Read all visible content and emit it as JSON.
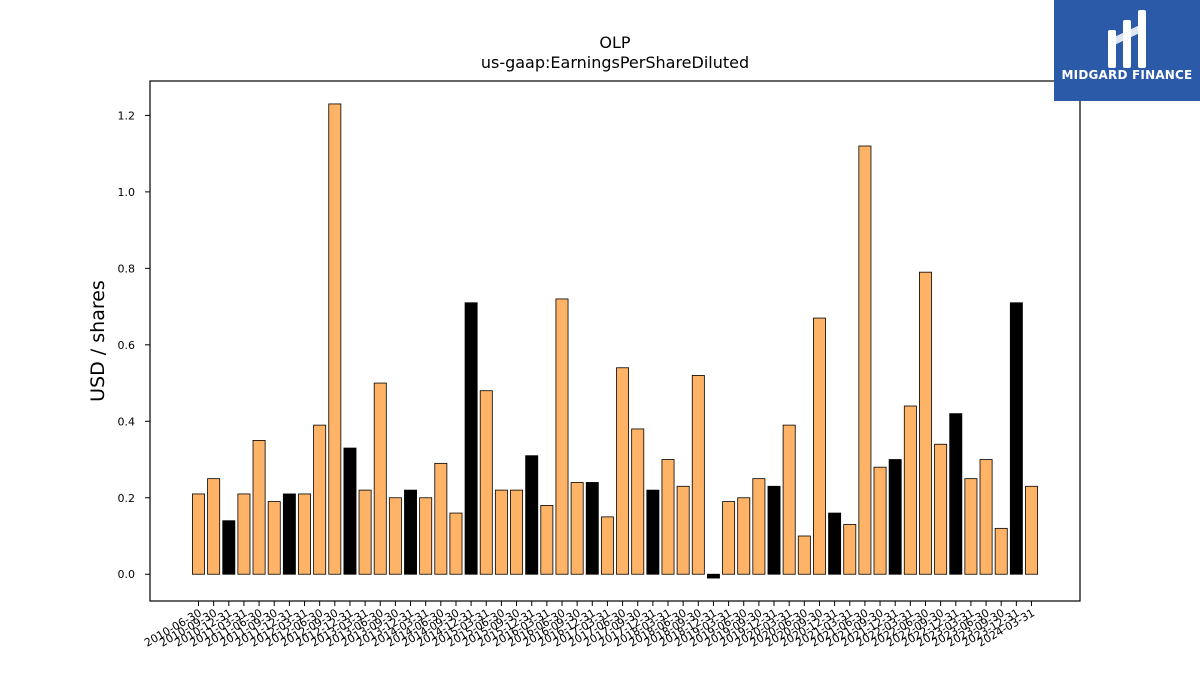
{
  "chart_data": {
    "type": "bar",
    "title": "OLP",
    "subtitle": "us-gaap:EarningsPerShareDiluted",
    "xlabel": "",
    "ylabel": "USD / shares",
    "ylim": [
      -0.07,
      1.29
    ],
    "yticks": [
      "0.0",
      "0.2",
      "0.4",
      "0.6",
      "0.8",
      "1.0",
      "1.2"
    ],
    "grid": false,
    "colors": {
      "default": "#ffb366",
      "highlight": "#000000",
      "edge": "#000000"
    },
    "categories": [
      "2010-06-30",
      "2010-09-30",
      "2010-12-31",
      "2011-03-31",
      "2011-06-30",
      "2011-09-30",
      "2011-12-31",
      "2012-03-31",
      "2012-06-30",
      "2012-09-30",
      "2012-12-31",
      "2013-03-31",
      "2013-06-30",
      "2013-09-30",
      "2013-12-31",
      "2014-03-31",
      "2014-06-30",
      "2014-09-30",
      "2014-12-31",
      "2015-03-31",
      "2015-06-30",
      "2015-09-30",
      "2015-12-31",
      "2016-03-31",
      "2016-06-30",
      "2016-09-30",
      "2016-12-31",
      "2017-03-31",
      "2017-06-30",
      "2017-09-30",
      "2017-12-31",
      "2018-03-31",
      "2018-06-30",
      "2018-09-30",
      "2018-12-31",
      "2019-03-31",
      "2019-06-30",
      "2019-09-30",
      "2019-12-31",
      "2020-03-31",
      "2020-06-30",
      "2020-09-30",
      "2020-12-31",
      "2021-03-31",
      "2021-06-30",
      "2021-09-30",
      "2021-12-31",
      "2022-03-31",
      "2022-06-30",
      "2022-09-30",
      "2022-12-31",
      "2023-03-31",
      "2023-06-30",
      "2023-09-30",
      "2023-12-31",
      "2024-03-31"
    ],
    "values": [
      0.21,
      0.25,
      0.14,
      0.21,
      0.35,
      0.19,
      0.21,
      0.21,
      0.39,
      1.23,
      0.33,
      0.22,
      0.5,
      0.2,
      0.22,
      0.2,
      0.29,
      0.16,
      0.71,
      0.48,
      0.22,
      0.22,
      0.31,
      0.18,
      0.72,
      0.24,
      0.24,
      0.15,
      0.54,
      0.38,
      0.22,
      0.3,
      0.23,
      0.52,
      -0.01,
      0.19,
      0.2,
      0.25,
      0.23,
      0.39,
      0.1,
      0.67,
      0.16,
      0.13,
      1.12,
      0.28,
      0.3,
      0.44,
      0.79,
      0.34,
      0.42,
      0.25,
      0.3,
      0.12,
      0.71,
      0.23
    ],
    "highlighted": [
      false,
      false,
      true,
      false,
      false,
      false,
      true,
      false,
      false,
      false,
      true,
      false,
      false,
      false,
      true,
      false,
      false,
      false,
      true,
      false,
      false,
      false,
      true,
      false,
      false,
      false,
      true,
      false,
      false,
      false,
      true,
      false,
      false,
      false,
      true,
      false,
      false,
      false,
      true,
      false,
      false,
      false,
      true,
      false,
      false,
      false,
      true,
      false,
      false,
      false,
      true,
      false,
      false,
      false,
      true,
      false
    ]
  },
  "logo": {
    "text": "MIDGARD FINANCE"
  }
}
